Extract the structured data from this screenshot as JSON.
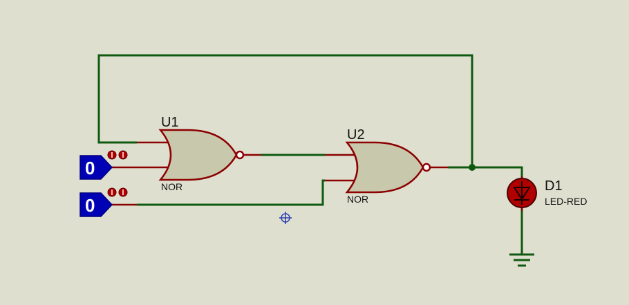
{
  "colors": {
    "background": "#dfdfd0",
    "wire": "#0f5a0f",
    "pin": "#8b0000",
    "gate_fill": "#c8c8ac",
    "logicstate_fill": "#0000b4",
    "led_fill": "#b00000"
  },
  "components": {
    "u1": {
      "ref": "U1",
      "type": "NOR"
    },
    "u2": {
      "ref": "U2",
      "type": "NOR"
    },
    "d1": {
      "ref": "D1",
      "type": "LED-RED"
    }
  },
  "inputs": [
    {
      "value": "0"
    },
    {
      "value": "0"
    }
  ],
  "icons": [
    "crosshair-cursor-icon",
    "ground-icon",
    "led-diode-icon"
  ]
}
